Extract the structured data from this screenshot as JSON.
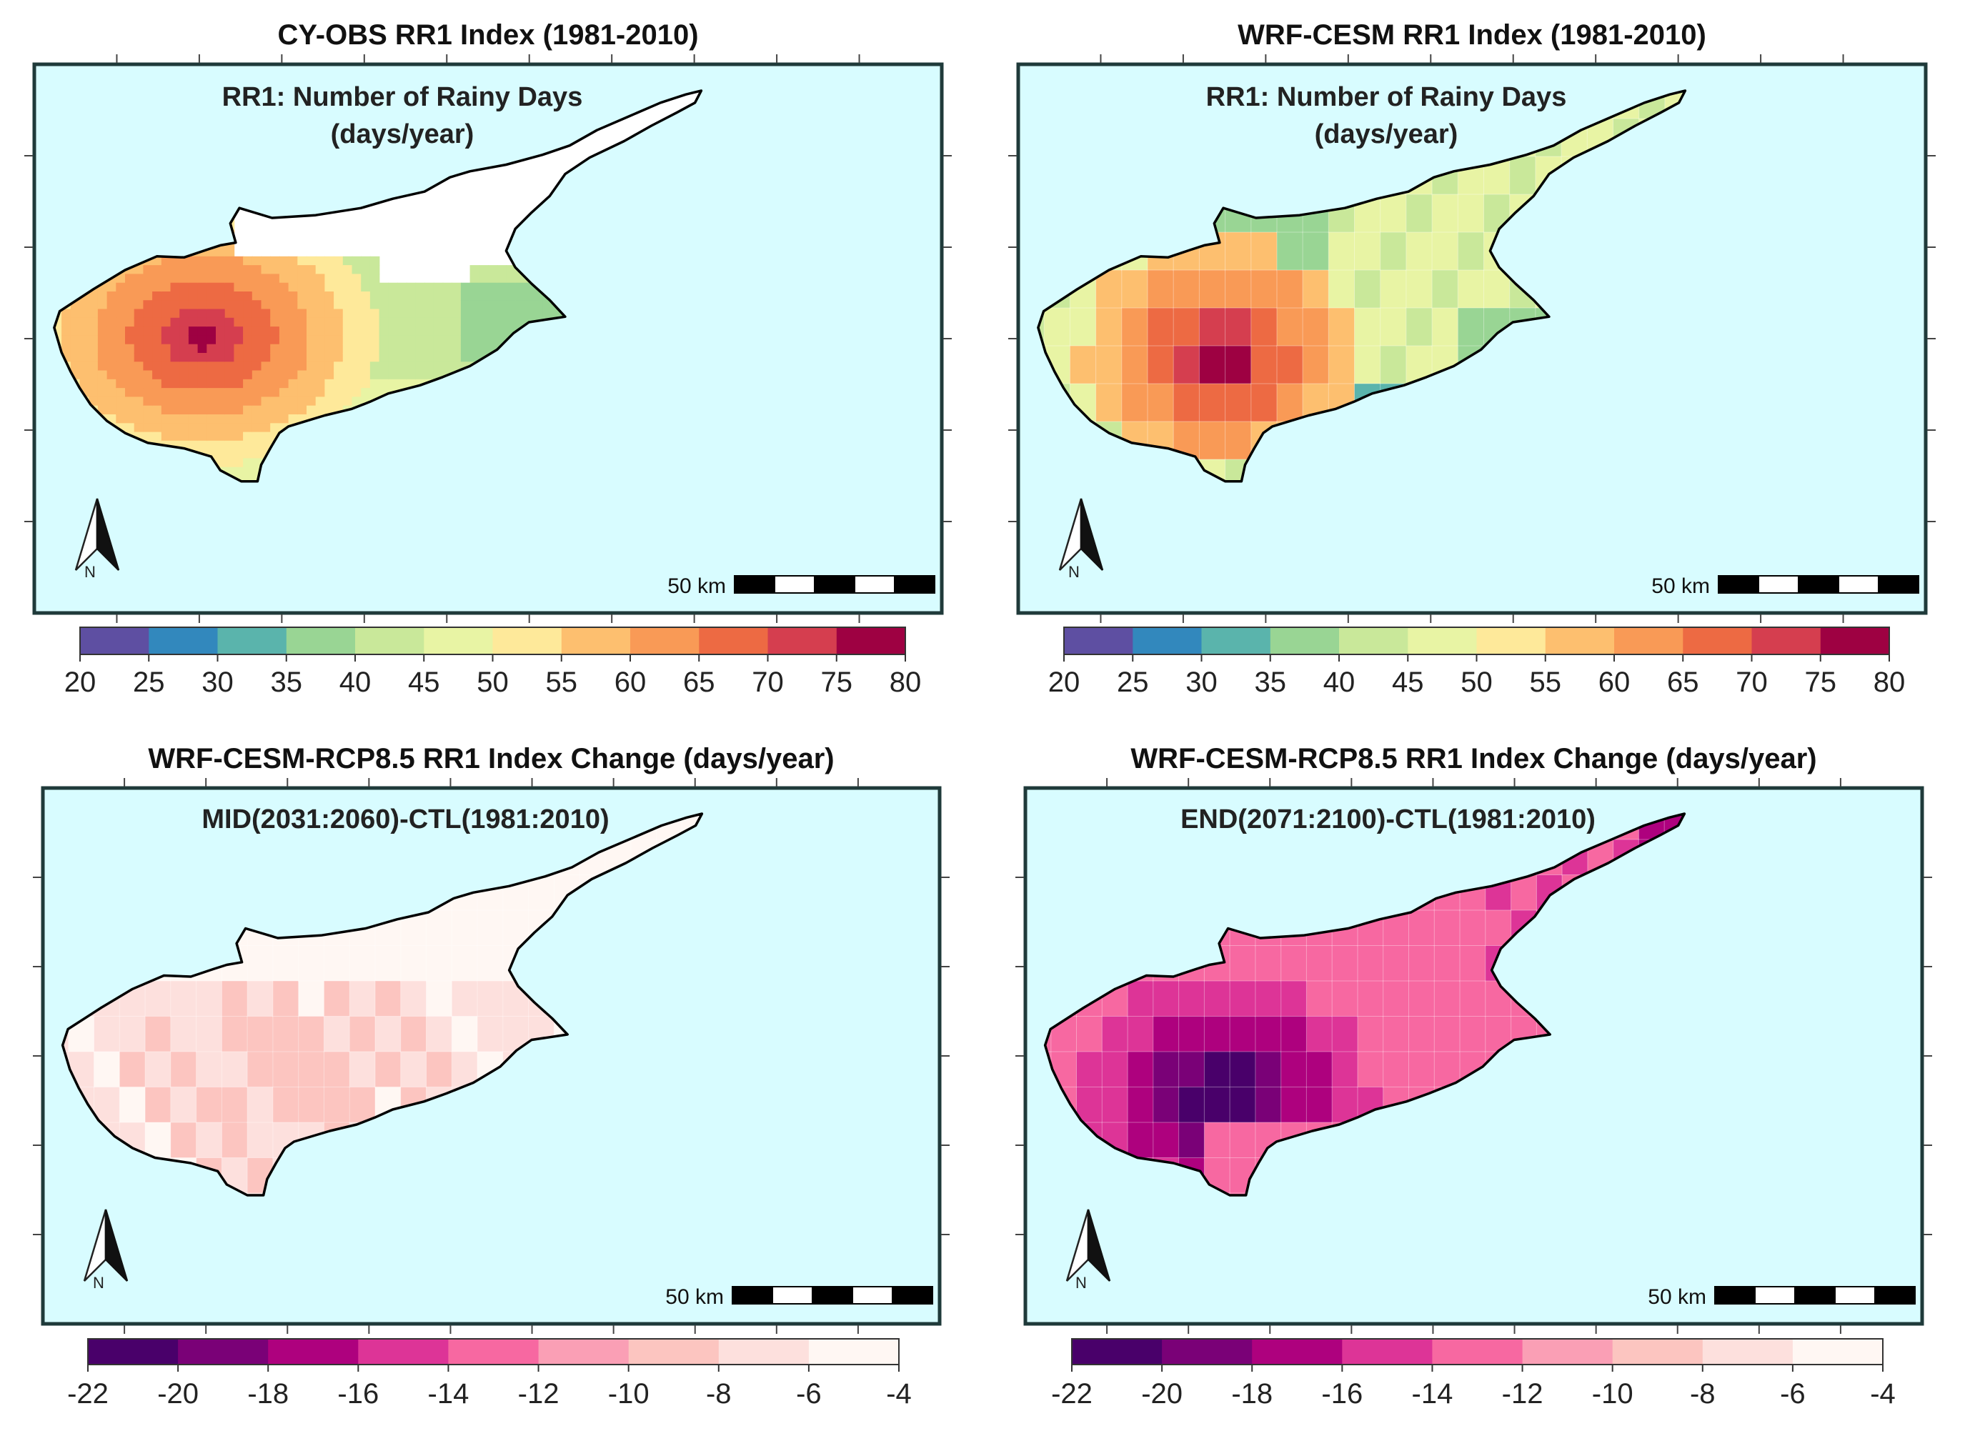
{
  "panels": [
    {
      "title": "CY-OBS RR1 Index (1981-2010)",
      "subtitle_line1": "RR1: Number of Rainy Days",
      "subtitle_line2": "(days/year)",
      "scalebar_label": "50 km",
      "north_label": "N",
      "map_kind": "obs",
      "colorbar_key": "rr1"
    },
    {
      "title": "WRF-CESM RR1 Index (1981-2010)",
      "subtitle_line1": "RR1: Number of Rainy Days",
      "subtitle_line2": "(days/year)",
      "scalebar_label": "50 km",
      "north_label": "N",
      "map_kind": "model",
      "colorbar_key": "rr1"
    },
    {
      "title": "WRF-CESM-RCP8.5 RR1 Index Change (days/year)",
      "subtitle_line1": "MID(2031:2060)-CTL(1981:2010)",
      "subtitle_line2": "",
      "scalebar_label": "50 km",
      "north_label": "N",
      "map_kind": "mid",
      "colorbar_key": "change"
    },
    {
      "title": "WRF-CESM-RCP8.5 RR1 Index Change (days/year)",
      "subtitle_line1": "END(2071:2100)-CTL(1981:2010)",
      "subtitle_line2": "",
      "scalebar_label": "50 km",
      "north_label": "N",
      "map_kind": "end",
      "colorbar_key": "change"
    }
  ],
  "colorbars": {
    "rr1": {
      "ticks": [
        "20",
        "25",
        "30",
        "35",
        "40",
        "45",
        "50",
        "55",
        "60",
        "65",
        "70",
        "75",
        "80"
      ],
      "colors": [
        "#5e4fa2",
        "#3288bd",
        "#5ab4ac",
        "#99d594",
        "#c9e89a",
        "#e8f4a4",
        "#fee99a",
        "#fdbf6f",
        "#f99a56",
        "#ed6a43",
        "#d53e4f",
        "#9e0142"
      ]
    },
    "change": {
      "ticks": [
        "-22",
        "-20",
        "-18",
        "-16",
        "-14",
        "-12",
        "-10",
        "-8",
        "-6",
        "-4"
      ],
      "colors": [
        "#49006a",
        "#7a0177",
        "#ae017e",
        "#dd3497",
        "#f768a1",
        "#fa9fb5",
        "#fcc5c0",
        "#fde0dd",
        "#fff7f3"
      ]
    }
  },
  "colors": {
    "sea": "#d8fcff",
    "frame": "#1f3a3a",
    "coast": "#000000"
  }
}
